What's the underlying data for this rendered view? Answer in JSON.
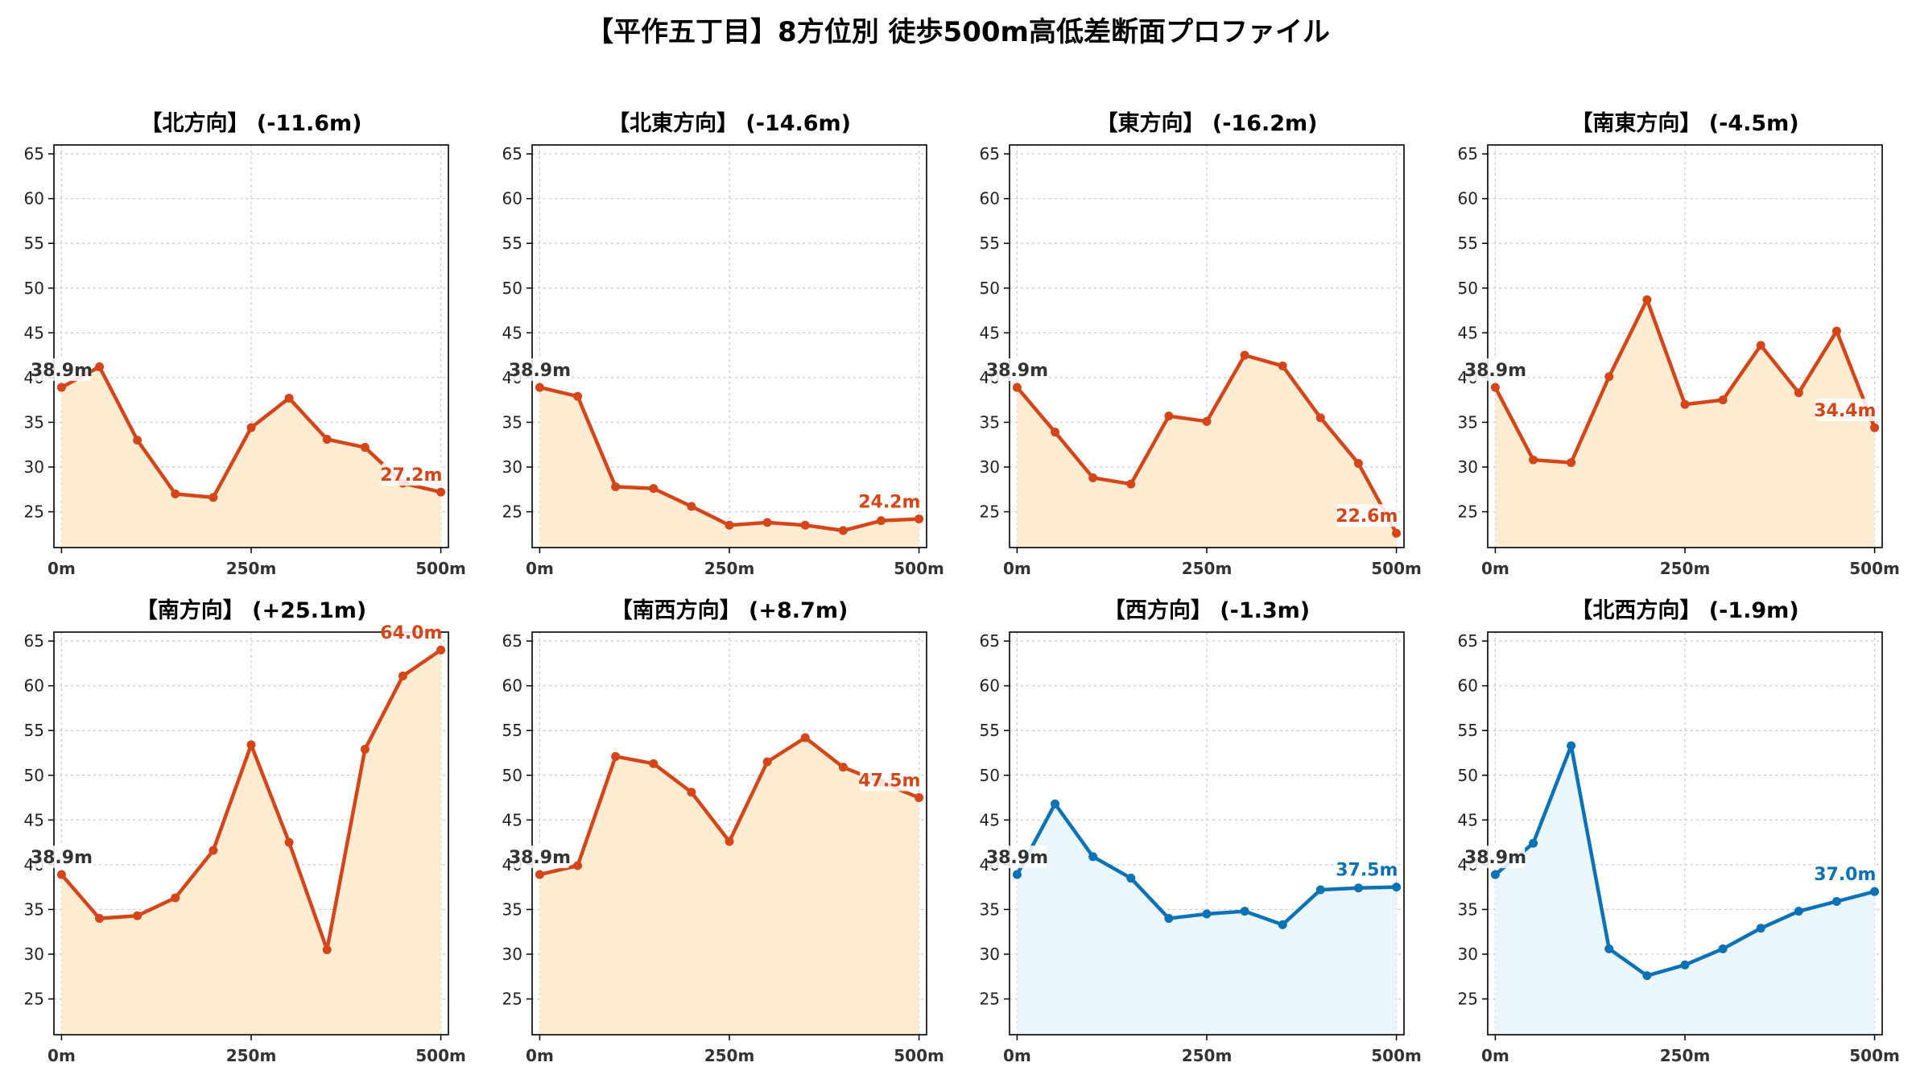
{
  "title": "【平作五丁目】8方位別 徒歩500m高低差断面プロファイル",
  "colors": {
    "downhill_line": "#d4461a",
    "downhill_fill": "#feecd2",
    "flat_line": "#0b72b5",
    "flat_fill": "#eaf6fc",
    "start_label": "#333333"
  },
  "chart_data": [
    {
      "type": "area",
      "title": "【北方向】 (-11.6m)",
      "color_scheme": "downhill",
      "x": [
        0,
        50,
        100,
        150,
        200,
        250,
        300,
        350,
        400,
        450,
        500
      ],
      "values": [
        38.9,
        41.2,
        33.0,
        27.0,
        26.6,
        34.4,
        37.7,
        33.1,
        32.2,
        28.2,
        27.2
      ],
      "start_label": "38.9m",
      "end_label": "27.2m",
      "x_ticks": [
        0,
        250,
        500
      ],
      "x_tick_labels": [
        "0m",
        "250m",
        "500m"
      ],
      "y_ticks": [
        25,
        30,
        35,
        40,
        45,
        50,
        55,
        60,
        65
      ],
      "ylim": [
        21,
        66
      ],
      "xlim": [
        -10,
        510
      ],
      "grid": true
    },
    {
      "type": "area",
      "title": "【北東方向】 (-14.6m)",
      "color_scheme": "downhill",
      "x": [
        0,
        50,
        100,
        150,
        200,
        250,
        300,
        350,
        400,
        450,
        500
      ],
      "values": [
        38.9,
        37.9,
        27.8,
        27.6,
        25.6,
        23.5,
        23.8,
        23.5,
        22.9,
        24.0,
        24.2
      ],
      "start_label": "38.9m",
      "end_label": "24.2m",
      "x_ticks": [
        0,
        250,
        500
      ],
      "x_tick_labels": [
        "0m",
        "250m",
        "500m"
      ],
      "y_ticks": [
        25,
        30,
        35,
        40,
        45,
        50,
        55,
        60,
        65
      ],
      "ylim": [
        21,
        66
      ],
      "xlim": [
        -10,
        510
      ],
      "grid": true
    },
    {
      "type": "area",
      "title": "【東方向】 (-16.2m)",
      "color_scheme": "downhill",
      "x": [
        0,
        50,
        100,
        150,
        200,
        250,
        300,
        350,
        400,
        450,
        500
      ],
      "values": [
        38.9,
        33.9,
        28.8,
        28.1,
        35.7,
        35.1,
        42.5,
        41.3,
        35.5,
        30.4,
        22.6
      ],
      "start_label": "38.9m",
      "end_label": "22.6m",
      "x_ticks": [
        0,
        250,
        500
      ],
      "x_tick_labels": [
        "0m",
        "250m",
        "500m"
      ],
      "y_ticks": [
        25,
        30,
        35,
        40,
        45,
        50,
        55,
        60,
        65
      ],
      "ylim": [
        21,
        66
      ],
      "xlim": [
        -10,
        510
      ],
      "grid": true
    },
    {
      "type": "area",
      "title": "【南東方向】 (-4.5m)",
      "color_scheme": "downhill",
      "x": [
        0,
        50,
        100,
        150,
        200,
        250,
        300,
        350,
        400,
        450,
        500
      ],
      "values": [
        38.9,
        30.8,
        30.5,
        40.1,
        48.7,
        37.0,
        37.5,
        43.6,
        38.3,
        45.2,
        34.4
      ],
      "start_label": "38.9m",
      "end_label": "34.4m",
      "x_ticks": [
        0,
        250,
        500
      ],
      "x_tick_labels": [
        "0m",
        "250m",
        "500m"
      ],
      "y_ticks": [
        25,
        30,
        35,
        40,
        45,
        50,
        55,
        60,
        65
      ],
      "ylim": [
        21,
        66
      ],
      "xlim": [
        -10,
        510
      ],
      "grid": true
    },
    {
      "type": "area",
      "title": "【南方向】 (+25.1m)",
      "color_scheme": "downhill",
      "x": [
        0,
        50,
        100,
        150,
        200,
        250,
        300,
        350,
        400,
        450,
        500
      ],
      "values": [
        38.9,
        34.0,
        34.3,
        36.3,
        41.6,
        53.4,
        42.5,
        30.5,
        52.9,
        61.1,
        64.0
      ],
      "start_label": "38.9m",
      "end_label": "64.0m",
      "x_ticks": [
        0,
        250,
        500
      ],
      "x_tick_labels": [
        "0m",
        "250m",
        "500m"
      ],
      "y_ticks": [
        25,
        30,
        35,
        40,
        45,
        50,
        55,
        60,
        65
      ],
      "ylim": [
        21,
        66
      ],
      "xlim": [
        -10,
        510
      ],
      "grid": true
    },
    {
      "type": "area",
      "title": "【南西方向】 (+8.7m)",
      "color_scheme": "downhill",
      "x": [
        0,
        50,
        100,
        150,
        200,
        250,
        300,
        350,
        400,
        450,
        500
      ],
      "values": [
        38.9,
        39.9,
        52.1,
        51.3,
        48.1,
        42.6,
        51.5,
        54.2,
        50.9,
        49.2,
        47.5
      ],
      "start_label": "38.9m",
      "end_label": "47.5m",
      "x_ticks": [
        0,
        250,
        500
      ],
      "x_tick_labels": [
        "0m",
        "250m",
        "500m"
      ],
      "y_ticks": [
        25,
        30,
        35,
        40,
        45,
        50,
        55,
        60,
        65
      ],
      "ylim": [
        21,
        66
      ],
      "xlim": [
        -10,
        510
      ],
      "grid": true
    },
    {
      "type": "area",
      "title": "【西方向】 (-1.3m)",
      "color_scheme": "flat",
      "x": [
        0,
        50,
        100,
        150,
        200,
        250,
        300,
        350,
        400,
        450,
        500
      ],
      "values": [
        38.9,
        46.8,
        40.9,
        38.5,
        34.0,
        34.5,
        34.8,
        33.3,
        37.2,
        37.4,
        37.5
      ],
      "start_label": "38.9m",
      "end_label": "37.5m",
      "x_ticks": [
        0,
        250,
        500
      ],
      "x_tick_labels": [
        "0m",
        "250m",
        "500m"
      ],
      "y_ticks": [
        25,
        30,
        35,
        40,
        45,
        50,
        55,
        60,
        65
      ],
      "ylim": [
        21,
        66
      ],
      "xlim": [
        -10,
        510
      ],
      "grid": true
    },
    {
      "type": "area",
      "title": "【北西方向】 (-1.9m)",
      "color_scheme": "flat",
      "x": [
        0,
        50,
        100,
        150,
        200,
        250,
        300,
        350,
        400,
        450,
        500
      ],
      "values": [
        38.9,
        42.4,
        53.3,
        30.6,
        27.6,
        28.8,
        30.6,
        32.9,
        34.8,
        35.9,
        37.0
      ],
      "start_label": "38.9m",
      "end_label": "37.0m",
      "x_ticks": [
        0,
        250,
        500
      ],
      "x_tick_labels": [
        "0m",
        "250m",
        "500m"
      ],
      "y_ticks": [
        25,
        30,
        35,
        40,
        45,
        50,
        55,
        60,
        65
      ],
      "ylim": [
        21,
        66
      ],
      "xlim": [
        -10,
        510
      ],
      "grid": true
    }
  ]
}
